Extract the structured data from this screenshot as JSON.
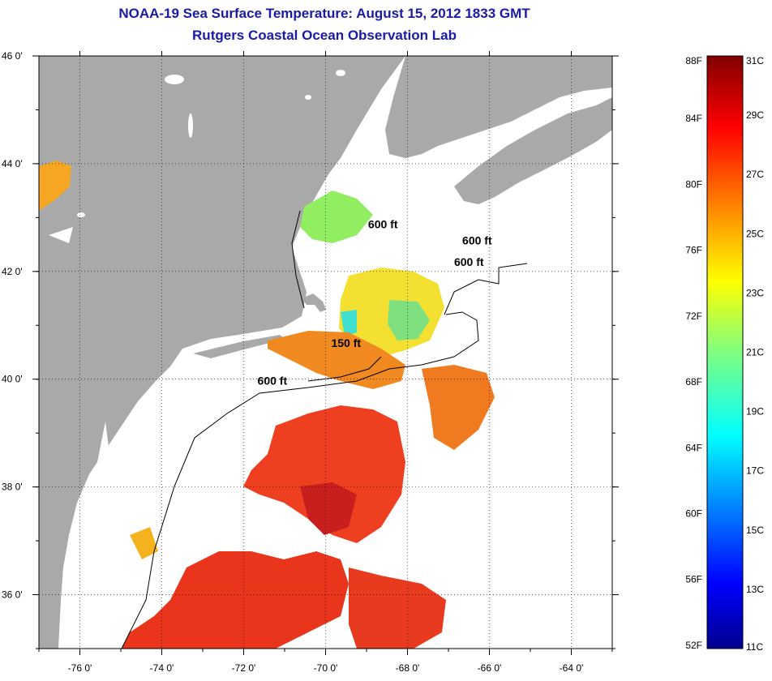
{
  "header": {
    "title": "NOAA-19 Sea Surface Temperature:  August 15, 2012 1833 GMT",
    "subtitle": "Rutgers Coastal Ocean Observation Lab"
  },
  "map": {
    "lon_range": [
      -77,
      -63
    ],
    "lat_range": [
      35,
      46
    ],
    "lon_ticks": [
      {
        "value": -76,
        "label": "-76 0'"
      },
      {
        "value": -74,
        "label": "-74 0'"
      },
      {
        "value": -72,
        "label": "-72 0'"
      },
      {
        "value": -70,
        "label": "-70 0'"
      },
      {
        "value": -68,
        "label": "-68 0'"
      },
      {
        "value": -66,
        "label": "-66 0'"
      },
      {
        "value": -64,
        "label": "-64 0'"
      }
    ],
    "lat_ticks": [
      {
        "value": 46,
        "label": "46 0'"
      },
      {
        "value": 44,
        "label": "44 0'"
      },
      {
        "value": 42,
        "label": "42 0'"
      },
      {
        "value": 40,
        "label": "40 0'"
      },
      {
        "value": 38,
        "label": "38 0'"
      },
      {
        "value": 36,
        "label": "36 0'"
      }
    ],
    "grid": true,
    "land_color": "#a9a9a9",
    "contour_labels": [
      {
        "text": "600 ft",
        "lon": -68.6,
        "lat": 42.8
      },
      {
        "text": "600 ft",
        "lon": -66.3,
        "lat": 42.5
      },
      {
        "text": "600 ft",
        "lon": -66.5,
        "lat": 42.1
      },
      {
        "text": "150 ft",
        "lon": -69.5,
        "lat": 40.6
      },
      {
        "text": "600 ft",
        "lon": -71.3,
        "lat": 39.9
      }
    ]
  },
  "colorbar": {
    "fahrenheit_labels": [
      {
        "value": 88,
        "label": "88F"
      },
      {
        "value": 84,
        "label": "84F"
      },
      {
        "value": 80,
        "label": "80F"
      },
      {
        "value": 76,
        "label": "76F"
      },
      {
        "value": 72,
        "label": "72F"
      },
      {
        "value": 68,
        "label": "68F"
      },
      {
        "value": 64,
        "label": "64F"
      },
      {
        "value": 60,
        "label": "60F"
      },
      {
        "value": 56,
        "label": "56F"
      },
      {
        "value": 52,
        "label": "52F"
      }
    ],
    "celsius_labels": [
      {
        "value": 31,
        "label": "31C"
      },
      {
        "value": 29,
        "label": "29C"
      },
      {
        "value": 27,
        "label": "27C"
      },
      {
        "value": 25,
        "label": "25C"
      },
      {
        "value": 23,
        "label": "23C"
      },
      {
        "value": 21,
        "label": "21C"
      },
      {
        "value": 19,
        "label": "19C"
      },
      {
        "value": 17,
        "label": "17C"
      },
      {
        "value": 15,
        "label": "15C"
      },
      {
        "value": 13,
        "label": "13C"
      },
      {
        "value": 11,
        "label": "11C"
      }
    ],
    "range_c": [
      11,
      31
    ],
    "colors": [
      "#00008f",
      "#0000ff",
      "#0080ff",
      "#00ffff",
      "#80ff80",
      "#ffff00",
      "#ff8000",
      "#ff0000",
      "#800000"
    ]
  }
}
